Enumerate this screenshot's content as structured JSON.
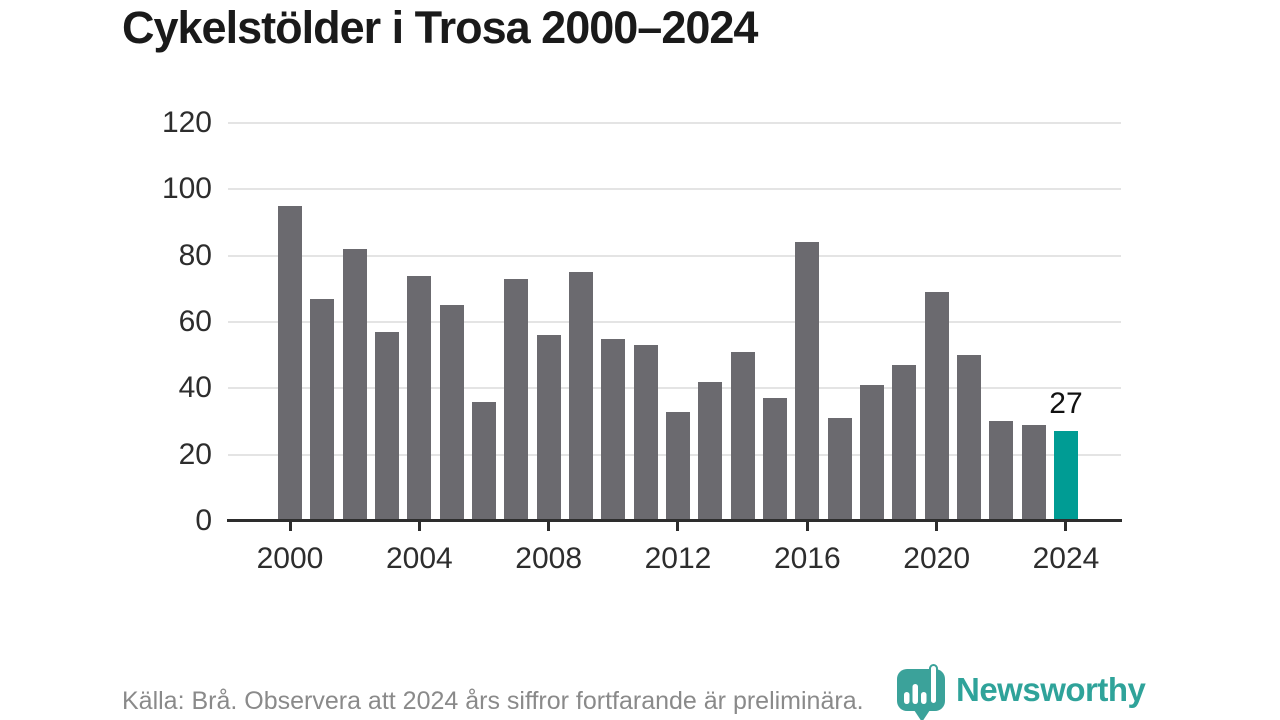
{
  "title": "Cykelstölder i Trosa 2000–2024",
  "footer": {
    "source_note": "Källa: Brå. Observera att 2024 års siffror fortfarande är preliminära."
  },
  "branding": {
    "logo_text": "Newsworthy",
    "logo_color": "#2fa39a"
  },
  "colors": {
    "bar": "#6b6a6f",
    "highlight": "#009c94",
    "grid": "#e4e4e4",
    "axis": "#2d2d2d",
    "tick_text": "#2d2d2d",
    "title_text": "#1a1a1a",
    "footer_text": "#8a8a8a"
  },
  "chart_data": {
    "type": "bar",
    "title": "Cykelstölder i Trosa 2000–2024",
    "xlabel": "",
    "ylabel": "",
    "years": [
      2000,
      2001,
      2002,
      2003,
      2004,
      2005,
      2006,
      2007,
      2008,
      2009,
      2010,
      2011,
      2012,
      2013,
      2014,
      2015,
      2016,
      2017,
      2018,
      2019,
      2020,
      2021,
      2022,
      2023,
      2024
    ],
    "values": [
      95,
      67,
      82,
      57,
      74,
      65,
      36,
      73,
      56,
      75,
      55,
      53,
      33,
      42,
      51,
      37,
      84,
      31,
      41,
      47,
      69,
      50,
      30,
      29,
      27
    ],
    "highlight_year": 2024,
    "highlight_value_label": "27",
    "ylim": [
      0,
      120
    ],
    "yticks": [
      0,
      20,
      40,
      60,
      80,
      100,
      120
    ],
    "xticks": [
      2000,
      2004,
      2008,
      2012,
      2016,
      2020,
      2024
    ],
    "grid": true,
    "legend": false
  }
}
